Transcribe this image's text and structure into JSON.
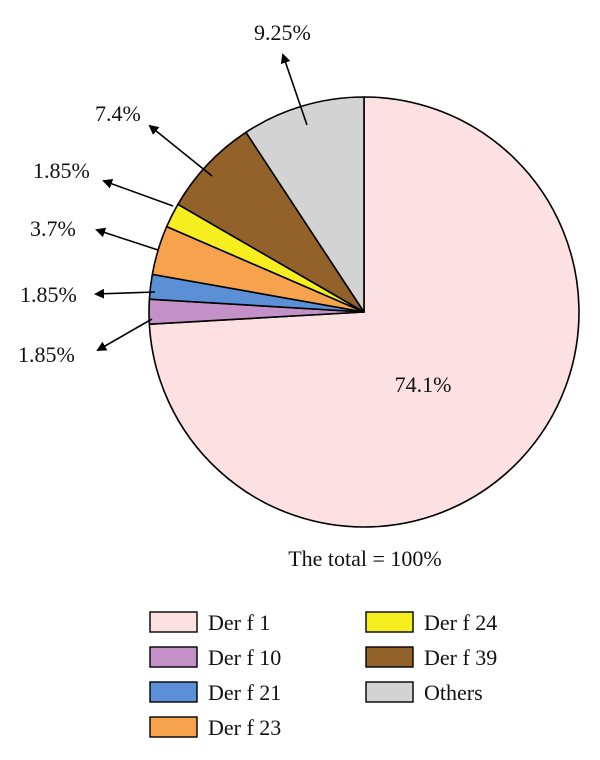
{
  "chart_data": {
    "type": "pie",
    "total_note": "The total = 100%",
    "slices": [
      {
        "name": "Der f 1",
        "value": 74.1,
        "label": "74.1%",
        "color": "#fde0e2"
      },
      {
        "name": "Der f 10",
        "value": 1.85,
        "label": "1.85%",
        "color": "#c391c8"
      },
      {
        "name": "Der f 21",
        "value": 1.85,
        "label": "1.85%",
        "color": "#5b8fd6"
      },
      {
        "name": "Der f 23",
        "value": 3.7,
        "label": "3.7%",
        "color": "#f7a24c"
      },
      {
        "name": "Der f 24",
        "value": 1.85,
        "label": "1.85%",
        "color": "#f6ee1e"
      },
      {
        "name": "Der f 39",
        "value": 7.4,
        "label": "7.4%",
        "color": "#93612a"
      },
      {
        "name": "Others",
        "value": 9.25,
        "label": "9.25%",
        "color": "#d3d3d3"
      }
    ],
    "legend": {
      "placement": "bottom",
      "columns": [
        [
          "Der f 1",
          "Der f 10",
          "Der f 21",
          "Der f 23"
        ],
        [
          "Der f 24",
          "Der f 39",
          "Others"
        ]
      ]
    }
  }
}
